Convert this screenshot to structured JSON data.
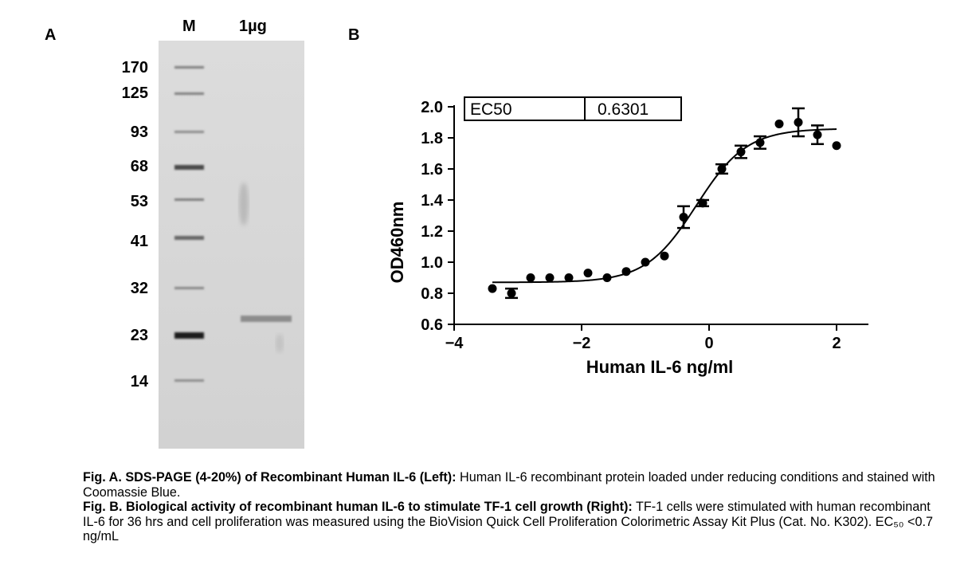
{
  "panel_a": {
    "label": "A",
    "lanes": [
      "M",
      "1µg"
    ],
    "markers": [
      {
        "label": "170"
      },
      {
        "label": "125"
      },
      {
        "label": "93"
      },
      {
        "label": "68"
      },
      {
        "label": "53"
      },
      {
        "label": "41"
      },
      {
        "label": "32"
      },
      {
        "label": "23"
      },
      {
        "label": "14"
      }
    ]
  },
  "panel_b": {
    "label": "B"
  },
  "chart_data": {
    "type": "scatter",
    "title": "",
    "xlabel": "Human IL-6 ng/ml",
    "ylabel": "OD460nm",
    "xlim": [
      -4,
      2.5
    ],
    "ylim": [
      0.6,
      2.0
    ],
    "xticks": [
      "-4",
      "-2",
      "0",
      "2"
    ],
    "yticks": [
      "0.6",
      "0.8",
      "1.0",
      "1.2",
      "1.4",
      "1.6",
      "1.8",
      "2.0"
    ],
    "table": {
      "label": "EC50",
      "value": "0.6301"
    },
    "series": [
      {
        "points": [
          {
            "x": -3.4,
            "y": 0.83,
            "err": 0
          },
          {
            "x": -3.1,
            "y": 0.8,
            "err": 0.03
          },
          {
            "x": -2.8,
            "y": 0.9,
            "err": 0
          },
          {
            "x": -2.5,
            "y": 0.9,
            "err": 0
          },
          {
            "x": -2.2,
            "y": 0.9,
            "err": 0
          },
          {
            "x": -1.9,
            "y": 0.93,
            "err": 0
          },
          {
            "x": -1.6,
            "y": 0.9,
            "err": 0
          },
          {
            "x": -1.3,
            "y": 0.94,
            "err": 0
          },
          {
            "x": -1.0,
            "y": 1.0,
            "err": 0
          },
          {
            "x": -0.7,
            "y": 1.04,
            "err": 0
          },
          {
            "x": -0.4,
            "y": 1.29,
            "err": 0.07
          },
          {
            "x": -0.1,
            "y": 1.38,
            "err": 0.02
          },
          {
            "x": 0.2,
            "y": 1.6,
            "err": 0.03
          },
          {
            "x": 0.5,
            "y": 1.71,
            "err": 0.04
          },
          {
            "x": 0.8,
            "y": 1.77,
            "err": 0.04
          },
          {
            "x": 1.1,
            "y": 1.89,
            "err": 0
          },
          {
            "x": 1.4,
            "y": 1.9,
            "err": 0.09
          },
          {
            "x": 1.7,
            "y": 1.82,
            "err": 0.06
          },
          {
            "x": 2.0,
            "y": 1.75,
            "err": 0
          }
        ]
      }
    ],
    "fit": {
      "bottom": 0.87,
      "top": 1.86,
      "logEC50": -0.2,
      "hill": 1.1
    }
  },
  "caption": {
    "a_bold": "Fig. A. SDS-PAGE (4-20%) of Recombinant Human IL-6 (Left):",
    "a_text": " Human IL-6 recombinant protein loaded under reducing conditions and stained with Coomassie Blue.",
    "b_bold": "Fig. B. Biological activity of recombinant human IL-6 to stimulate TF-1 cell growth (Right):",
    "b_text": " TF-1 cells were stimulated with human recombinant IL-6 for 36 hrs and cell proliferation was measured using the BioVision Quick Cell Proliferation Colorimetric Assay Kit Plus (Cat. No. K302). EC₅₀ <0.7 ng/mL"
  }
}
